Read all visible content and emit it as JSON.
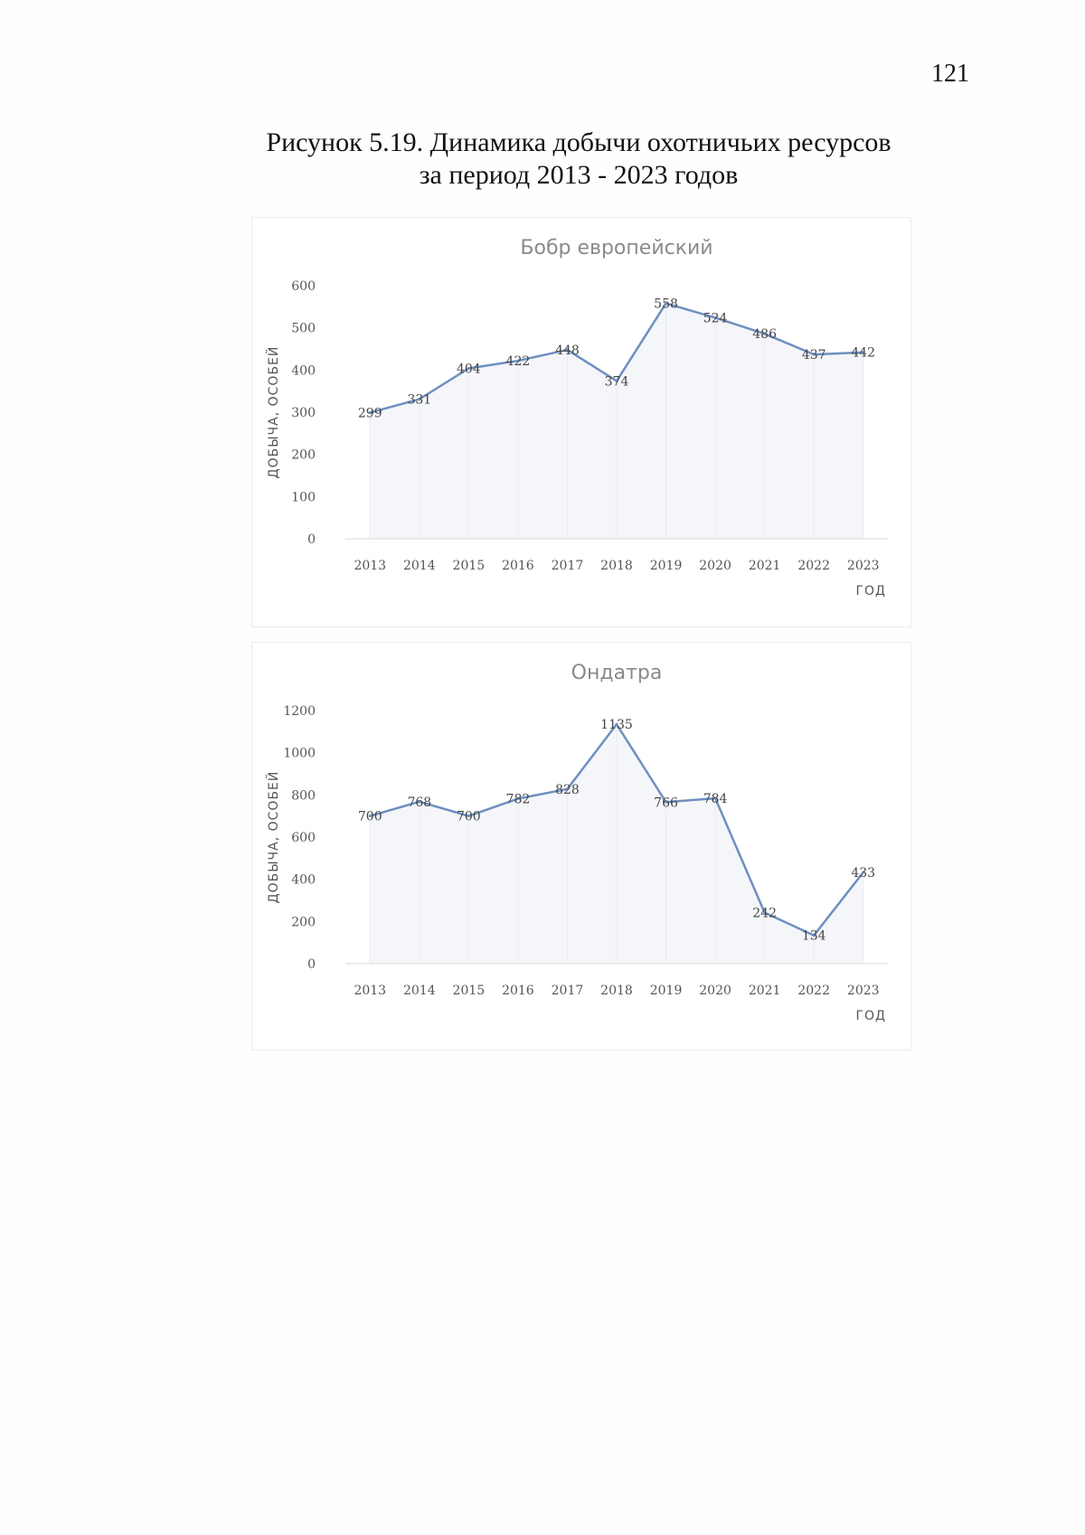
{
  "page": {
    "number": "121",
    "caption_line1": "Рисунок 5.19. Динамика добычи охотничьих ресурсов",
    "caption_line2": "за период 2013 - 2023 годов"
  },
  "colors": {
    "line": "#6e8fc0",
    "grid": "#ececec",
    "area": "#f5f6fa"
  },
  "chart_data": [
    {
      "type": "line",
      "title": "Бобр европейский",
      "xlabel": "ГОД",
      "ylabel": "ДОБЫЧА, ОСОБЕЙ",
      "categories": [
        "2013",
        "2014",
        "2015",
        "2016",
        "2017",
        "2018",
        "2019",
        "2020",
        "2021",
        "2022",
        "2023"
      ],
      "series": [
        {
          "values": [
            299,
            331,
            404,
            422,
            448,
            374,
            558,
            524,
            486,
            437,
            442
          ]
        }
      ],
      "ylim": [
        0,
        600
      ],
      "yticks": [
        0,
        100,
        200,
        300,
        400,
        500,
        600
      ],
      "data_labels": true,
      "legend": "none"
    },
    {
      "type": "line",
      "title": "Ондатра",
      "xlabel": "ГОД",
      "ylabel": "ДОБЫЧА, ОСОБЕЙ",
      "categories": [
        "2013",
        "2014",
        "2015",
        "2016",
        "2017",
        "2018",
        "2019",
        "2020",
        "2021",
        "2022",
        "2023"
      ],
      "series": [
        {
          "values": [
            700,
            768,
            700,
            782,
            828,
            1135,
            766,
            784,
            242,
            134,
            433
          ]
        }
      ],
      "ylim": [
        0,
        1200
      ],
      "yticks": [
        0,
        200,
        400,
        600,
        800,
        1000,
        1200
      ],
      "data_labels": true,
      "legend": "none"
    }
  ]
}
